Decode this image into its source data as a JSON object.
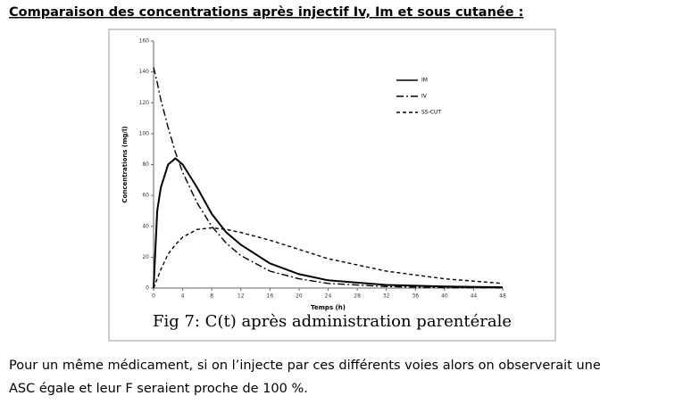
{
  "header": {
    "title": "Comparaison des concentrations après injectif Iv, Im et sous cutanée :"
  },
  "chart_data": {
    "type": "line",
    "x": [
      0,
      0.5,
      1,
      2,
      3,
      4,
      6,
      8,
      10,
      12,
      16,
      20,
      24,
      32,
      40,
      48
    ],
    "series": [
      {
        "name": "IM",
        "color": "#000000",
        "dash": "solid",
        "values": [
          0,
          50,
          65,
          80,
          84,
          80,
          65,
          48,
          36,
          28,
          16,
          9,
          5,
          2,
          1,
          0.5
        ]
      },
      {
        "name": "IV",
        "color": "#000000",
        "dash": "dashdot",
        "values": [
          143,
          133,
          122,
          104,
          88,
          75,
          55,
          40,
          29,
          21,
          11,
          6,
          3,
          1,
          0.3,
          0.1
        ]
      },
      {
        "name": "SS-CUT",
        "color": "#000000",
        "dash": "dashed",
        "values": [
          0,
          6,
          12,
          22,
          28,
          33,
          38,
          39,
          38,
          36,
          31,
          25,
          19,
          11,
          6,
          3
        ]
      }
    ],
    "xlim": [
      0,
      48
    ],
    "xticks": [
      0,
      4,
      8,
      12,
      16,
      20,
      24,
      28,
      32,
      36,
      40,
      44,
      48
    ],
    "ylim": [
      0,
      160
    ],
    "yticks": [
      0,
      20,
      40,
      60,
      80,
      100,
      120,
      140,
      160
    ],
    "x_label": "Temps (h)",
    "y_label": "Concentrations (mg/l)",
    "caption": "Fig 7: C(t) après administration parentérale"
  },
  "paragraph": [
    "Pour un même médicament, si on l’injecte par ces différents voies alors on observerait une",
    "ASC égale et leur F seraient proche de 100 %."
  ]
}
